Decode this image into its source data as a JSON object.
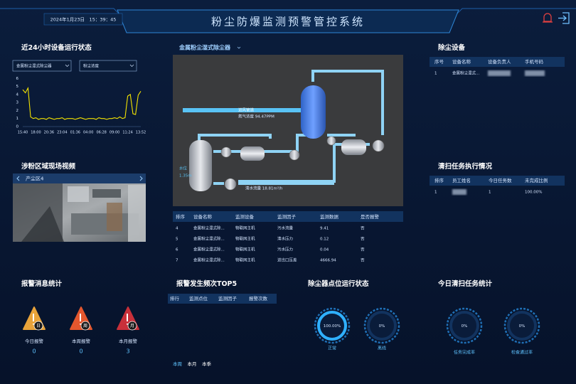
{
  "header": {
    "datetime": "2024年1月23日　15：39：45",
    "title": "粉尘防爆监测预警管控系统"
  },
  "trend": {
    "title": "近24小时设备运行状态",
    "device": "金属粉尘湿式除尘器",
    "factor": "粉尘浓度"
  },
  "chart_data": {
    "type": "line",
    "categories": [
      "15:40",
      null,
      null,
      null,
      null,
      "18:00",
      null,
      null,
      null,
      null,
      "20:36",
      null,
      null,
      null,
      null,
      "23:04",
      null,
      null,
      null,
      null,
      "01:36",
      null,
      null,
      null,
      null,
      "04:00",
      null,
      null,
      null,
      null,
      "06:28",
      null,
      null,
      null,
      null,
      "09:00",
      null,
      null,
      null,
      null,
      "11:24",
      null,
      null,
      null,
      null,
      "13:52"
    ],
    "values": [
      4.6,
      4.2,
      4.8,
      1.2,
      1.0,
      1.1,
      0.9,
      1.0,
      1.0,
      0.9,
      1.1,
      1.0,
      0.9,
      1.0,
      1.0,
      1.1,
      0.9,
      1.0,
      1.0,
      1.0,
      0.9,
      1.0,
      1.1,
      1.0,
      0.9,
      1.0,
      1.0,
      1.0,
      0.9,
      1.1,
      1.0,
      1.0,
      0.9,
      1.0,
      1.0,
      1.1,
      1.0,
      1.2,
      1.0,
      1.1,
      3.8,
      4.0,
      1.6,
      1.5,
      3.9,
      4.4
    ],
    "color": "#f5e400",
    "ylim": [
      0,
      6.2
    ],
    "yticks": [
      0,
      1,
      2,
      3,
      4,
      5,
      6
    ],
    "grid": false
  },
  "video": {
    "title": "涉粉区域现场视频",
    "area": "产尘区4"
  },
  "process": {
    "device": "金属粉尘湿式除尘器",
    "inlet": "进风管道",
    "nitrogen": "氮气浓度 94.47PPM",
    "water_level": "水位",
    "water_level_value": "1.35m",
    "flow": "清水流量 18.81m³/h",
    "headers": [
      "排序",
      "设备名称",
      "监测设备",
      "监测因子",
      "监测数据",
      "是否报警"
    ],
    "rows": [
      [
        "4",
        "金属粉尘湿式除...",
        "物联网主机",
        "污水流量",
        "9.41",
        "否"
      ],
      [
        "5",
        "金属粉尘湿式除...",
        "物联网主机",
        "清水压力",
        "0.12",
        "否"
      ],
      [
        "6",
        "金属粉尘湿式除...",
        "物联网主机",
        "污水压力",
        "0.04",
        "否"
      ],
      [
        "7",
        "金属粉尘湿式除...",
        "物联网主机",
        "进出口压差",
        "4666.94",
        "否"
      ]
    ]
  },
  "equipment": {
    "title": "除尘设备",
    "headers": [
      "序号",
      "设备名称",
      "设备负责人",
      "手机号码"
    ],
    "row": {
      "no": "1",
      "name": "金属粉尘湿式..."
    }
  },
  "cleaning": {
    "title": "清扫任务执行情况",
    "headers": [
      "排序",
      "员工姓名",
      "今日任务数",
      "未完成比例"
    ],
    "row": {
      "no": "1",
      "tasks": "1",
      "ratio": "100.00%"
    }
  },
  "alarms": {
    "title": "报警消息统计",
    "items": [
      {
        "icon": "日",
        "label": "今日报警",
        "count": 0
      },
      {
        "icon": "周",
        "label": "本周报警",
        "count": 0
      },
      {
        "icon": "月",
        "label": "本月报警",
        "count": 3
      }
    ]
  },
  "top5": {
    "title": "报警发生频次TOP5",
    "headers": [
      "排行",
      "监测点位",
      "监测因子",
      "报警次数"
    ],
    "tabs": [
      "本周",
      "本月",
      "本季"
    ]
  },
  "points": {
    "title": "除尘器点位运行状态",
    "gauges": [
      {
        "value": 100,
        "value_label": "100.00%",
        "label": "正常"
      },
      {
        "value": 0,
        "value_label": "0%",
        "label": "离线"
      }
    ]
  },
  "sweep": {
    "title": "今日清扫任务统计",
    "gauges": [
      {
        "value": 0,
        "value_label": "0%",
        "label": "任务完成率"
      },
      {
        "value": 0,
        "value_label": "0%",
        "label": "检查通过率"
      }
    ]
  }
}
